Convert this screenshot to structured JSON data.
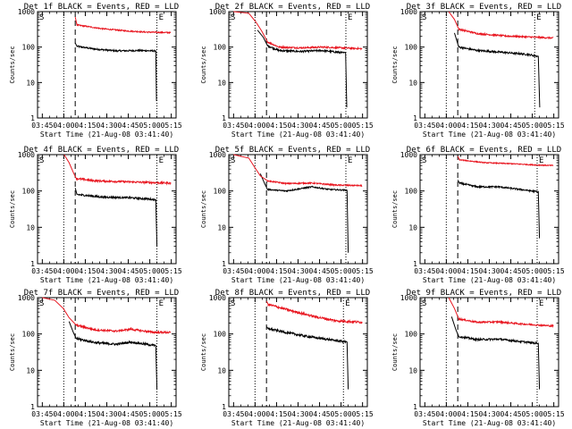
{
  "colors": {
    "events": "#000000",
    "lld": "#e8141e",
    "axes": "#000000",
    "background": "#ffffff"
  },
  "shared": {
    "ylabel": "Counts/sec",
    "xlabel": "Start Time (21-Aug-08 03:41:40)",
    "x_tick_labels": [
      "03:45",
      "04:00",
      "04:15",
      "04:30",
      "04:45",
      "05:00",
      "05:15"
    ],
    "y_tick_labels": [
      "1",
      "10",
      "100",
      "1000"
    ],
    "start_marker": "S",
    "end_marker": "E"
  },
  "chart_data": [
    {
      "type": "line",
      "title": "Det 1f BLACK = Events, RED = LLD",
      "xlim_min": [
        0,
        96.67
      ],
      "ylim": [
        1,
        1000
      ],
      "yscale": "log",
      "markers": {
        "start_dotted_min": 18.3,
        "dashed_min": 26.3,
        "end_dotted_min": 83.3
      },
      "series": [
        {
          "name": "Events",
          "color": "black",
          "data_start_min": 26.3,
          "data_end_min": 84.0,
          "pre": [
            [
              26.3,
              130
            ],
            [
              27.5,
              105
            ]
          ],
          "body": [
            [
              27.5,
              105
            ],
            [
              40,
              88
            ],
            [
              55,
              78
            ],
            [
              70,
              80
            ],
            [
              82,
              78
            ]
          ],
          "drop": [
            [
              82.5,
              78
            ],
            [
              83,
              3
            ]
          ],
          "noise": 0.05
        },
        {
          "name": "LLD",
          "color": "red",
          "data_start_min": 26.3,
          "data_end_min": 93.3,
          "pre": [
            [
              26.3,
              700
            ],
            [
              27.5,
              420
            ]
          ],
          "body": [
            [
              27.5,
              420
            ],
            [
              45,
              330
            ],
            [
              60,
              290
            ],
            [
              75,
              265
            ],
            [
              93,
              255
            ]
          ],
          "drop": null,
          "noise": 0.04
        }
      ]
    },
    {
      "type": "line",
      "title": "Det 2f BLACK = Events, RED = LLD",
      "xlim_min": [
        0,
        96.67
      ],
      "ylim": [
        1,
        1000
      ],
      "yscale": "log",
      "markers": {
        "start_dotted_min": 18.3,
        "dashed_min": 26.3,
        "end_dotted_min": 81.7
      },
      "series": [
        {
          "name": "Events",
          "color": "black",
          "data_start_min": 20.0,
          "data_end_min": 83.0,
          "pre": [
            [
              20,
              300
            ],
            [
              24,
              190
            ],
            [
              27,
              110
            ]
          ],
          "body": [
            [
              27,
              110
            ],
            [
              35,
              80
            ],
            [
              50,
              75
            ],
            [
              65,
              80
            ],
            [
              81,
              68
            ]
          ],
          "drop": [
            [
              81.5,
              68
            ],
            [
              82.3,
              2
            ]
          ],
          "noise": 0.06
        },
        {
          "name": "LLD",
          "color": "red",
          "data_start_min": 3.3,
          "data_end_min": 93.3,
          "pre": [
            [
              3.3,
              1000
            ],
            [
              14,
              900
            ],
            [
              19,
              500
            ],
            [
              23,
              280
            ],
            [
              27,
              140
            ]
          ],
          "body": [
            [
              27,
              140
            ],
            [
              35,
              100
            ],
            [
              50,
              95
            ],
            [
              65,
              100
            ],
            [
              93,
              90
            ]
          ],
          "drop": null,
          "noise": 0.05
        }
      ]
    },
    {
      "type": "line",
      "title": "Det 3f BLACK = Events, RED = LLD",
      "xlim_min": [
        0,
        96.67
      ],
      "ylim": [
        1,
        1000
      ],
      "yscale": "log",
      "markers": {
        "start_dotted_min": 18.3,
        "dashed_min": 26.3,
        "end_dotted_min": 80.0
      },
      "series": [
        {
          "name": "Events",
          "color": "black",
          "data_start_min": 24.0,
          "data_end_min": 84.0,
          "pre": [
            [
              24,
              250
            ],
            [
              27,
              100
            ]
          ],
          "body": [
            [
              27,
              100
            ],
            [
              40,
              80
            ],
            [
              60,
              70
            ],
            [
              75,
              62
            ],
            [
              82,
              55
            ]
          ],
          "drop": [
            [
              82.5,
              55
            ],
            [
              83.5,
              2
            ]
          ],
          "noise": 0.06
        },
        {
          "name": "LLD",
          "color": "red",
          "data_start_min": 20.0,
          "data_end_min": 93.3,
          "pre": [
            [
              20,
              1000
            ],
            [
              24,
              600
            ],
            [
              27,
              320
            ]
          ],
          "body": [
            [
              27,
              320
            ],
            [
              40,
              240
            ],
            [
              60,
              205
            ],
            [
              80,
              190
            ],
            [
              93,
              180
            ]
          ],
          "drop": null,
          "noise": 0.05
        }
      ]
    },
    {
      "type": "line",
      "title": "Det 4f BLACK = Events, RED = LLD",
      "xlim_min": [
        0,
        96.67
      ],
      "ylim": [
        1,
        1000
      ],
      "yscale": "log",
      "markers": {
        "start_dotted_min": 18.3,
        "dashed_min": 26.3,
        "end_dotted_min": 83.3
      },
      "series": [
        {
          "name": "Events",
          "color": "black",
          "data_start_min": 26.3,
          "data_end_min": 84.0,
          "pre": [
            [
              26.3,
              120
            ],
            [
              27.5,
              80
            ]
          ],
          "body": [
            [
              27.5,
              80
            ],
            [
              45,
              68
            ],
            [
              65,
              65
            ],
            [
              82,
              58
            ]
          ],
          "drop": [
            [
              82.5,
              58
            ],
            [
              83.3,
              3
            ]
          ],
          "noise": 0.06
        },
        {
          "name": "LLD",
          "color": "red",
          "data_start_min": 18.5,
          "data_end_min": 93.3,
          "pre": [
            [
              18.5,
              1000
            ],
            [
              22,
              600
            ],
            [
              25,
              320
            ],
            [
              27,
              220
            ]
          ],
          "body": [
            [
              27,
              220
            ],
            [
              40,
              190
            ],
            [
              60,
              180
            ],
            [
              80,
              170
            ],
            [
              93,
              165
            ]
          ],
          "drop": null,
          "noise": 0.06
        }
      ]
    },
    {
      "type": "line",
      "title": "Det 5f BLACK = Events, RED = LLD",
      "xlim_min": [
        0,
        96.67
      ],
      "ylim": [
        1,
        1000
      ],
      "yscale": "log",
      "markers": {
        "start_dotted_min": 18.3,
        "dashed_min": 26.3,
        "end_dotted_min": 81.7
      },
      "series": [
        {
          "name": "Events",
          "color": "black",
          "data_start_min": 22.0,
          "data_end_min": 84.0,
          "pre": [
            [
              22,
              300
            ],
            [
              25,
              160
            ],
            [
              27,
              110
            ]
          ],
          "body": [
            [
              27,
              110
            ],
            [
              40,
              100
            ],
            [
              58,
              130
            ],
            [
              70,
              110
            ],
            [
              82,
              105
            ]
          ],
          "drop": [
            [
              82.5,
              105
            ],
            [
              83.3,
              2
            ]
          ],
          "noise": 0.04
        },
        {
          "name": "LLD",
          "color": "red",
          "data_start_min": 3.3,
          "data_end_min": 93.3,
          "pre": [
            [
              3.3,
              1000
            ],
            [
              14,
              800
            ],
            [
              18,
              450
            ],
            [
              22,
              260
            ],
            [
              27,
              190
            ]
          ],
          "body": [
            [
              27,
              190
            ],
            [
              40,
              160
            ],
            [
              58,
              165
            ],
            [
              75,
              145
            ],
            [
              93,
              140
            ]
          ],
          "drop": null,
          "noise": 0.04
        }
      ]
    },
    {
      "type": "line",
      "title": "Det 6f BLACK = Events, RED = LLD",
      "xlim_min": [
        0,
        96.67
      ],
      "ylim": [
        1,
        1000
      ],
      "yscale": "log",
      "markers": {
        "start_dotted_min": 18.3,
        "dashed_min": 26.3,
        "end_dotted_min": 81.7
      },
      "series": [
        {
          "name": "Events",
          "color": "black",
          "data_start_min": 26.3,
          "data_end_min": 84.0,
          "pre": [
            [
              26.3,
              200
            ],
            [
              27.5,
              165
            ]
          ],
          "body": [
            [
              27.5,
              165
            ],
            [
              40,
              130
            ],
            [
              55,
              130
            ],
            [
              70,
              110
            ],
            [
              82,
              95
            ]
          ],
          "drop": [
            [
              82.5,
              95
            ],
            [
              83.3,
              5
            ]
          ],
          "noise": 0.05
        },
        {
          "name": "LLD",
          "color": "red",
          "data_start_min": 26.3,
          "data_end_min": 93.3,
          "pre": [
            [
              26.3,
              900
            ],
            [
              27.5,
              720
            ]
          ],
          "body": [
            [
              27.5,
              720
            ],
            [
              45,
              600
            ],
            [
              65,
              560
            ],
            [
              80,
              520
            ],
            [
              93,
              500
            ]
          ],
          "drop": null,
          "noise": 0.03
        }
      ]
    },
    {
      "type": "line",
      "title": "Det 7f BLACK = Events, RED = LLD",
      "xlim_min": [
        0,
        96.67
      ],
      "ylim": [
        1,
        1000
      ],
      "yscale": "log",
      "markers": {
        "start_dotted_min": 18.3,
        "dashed_min": 26.3,
        "end_dotted_min": 83.3
      },
      "series": [
        {
          "name": "Events",
          "color": "black",
          "data_start_min": 22.0,
          "data_end_min": 84.0,
          "pre": [
            [
              22,
              220
            ],
            [
              25,
              110
            ],
            [
              27,
              75
            ]
          ],
          "body": [
            [
              27,
              75
            ],
            [
              40,
              58
            ],
            [
              55,
              52
            ],
            [
              65,
              60
            ],
            [
              82,
              48
            ]
          ],
          "drop": [
            [
              82.5,
              48
            ],
            [
              83.3,
              3
            ]
          ],
          "noise": 0.07
        },
        {
          "name": "LLD",
          "color": "red",
          "data_start_min": 3.3,
          "data_end_min": 93.3,
          "pre": [
            [
              3.3,
              1000
            ],
            [
              12,
              850
            ],
            [
              18,
              500
            ],
            [
              22,
              280
            ],
            [
              27,
              175
            ]
          ],
          "body": [
            [
              27,
              175
            ],
            [
              40,
              130
            ],
            [
              55,
              120
            ],
            [
              65,
              135
            ],
            [
              80,
              112
            ],
            [
              93,
              110
            ]
          ],
          "drop": null,
          "noise": 0.06
        }
      ]
    },
    {
      "type": "line",
      "title": "Det 8f BLACK = Events, RED = LLD",
      "xlim_min": [
        0,
        96.67
      ],
      "ylim": [
        1,
        1000
      ],
      "yscale": "log",
      "markers": {
        "start_dotted_min": 18.3,
        "dashed_min": 26.3,
        "end_dotted_min": 80.0
      },
      "series": [
        {
          "name": "Events",
          "color": "black",
          "data_start_min": 26.3,
          "data_end_min": 84.0,
          "pre": [
            [
              26.3,
              160
            ],
            [
              27.5,
              140
            ]
          ],
          "body": [
            [
              27.5,
              140
            ],
            [
              40,
              110
            ],
            [
              55,
              85
            ],
            [
              70,
              70
            ],
            [
              82,
              60
            ]
          ],
          "drop": [
            [
              82.5,
              60
            ],
            [
              83.3,
              3
            ]
          ],
          "noise": 0.07
        },
        {
          "name": "LLD",
          "color": "red",
          "data_start_min": 26.3,
          "data_end_min": 93.3,
          "pre": [
            [
              26.3,
              800
            ],
            [
              27.5,
              650
            ]
          ],
          "body": [
            [
              27.5,
              650
            ],
            [
              45,
              420
            ],
            [
              60,
              300
            ],
            [
              75,
              230
            ],
            [
              93,
              210
            ]
          ],
          "drop": null,
          "noise": 0.07
        }
      ]
    },
    {
      "type": "line",
      "title": "Det 9f BLACK = Events, RED = LLD",
      "xlim_min": [
        0,
        96.67
      ],
      "ylim": [
        1,
        1000
      ],
      "yscale": "log",
      "markers": {
        "start_dotted_min": 18.3,
        "dashed_min": 26.3,
        "end_dotted_min": 81.7
      },
      "series": [
        {
          "name": "Events",
          "color": "black",
          "data_start_min": 22.0,
          "data_end_min": 84.0,
          "pre": [
            [
              22,
              300
            ],
            [
              25,
              130
            ],
            [
              27,
              85
            ]
          ],
          "body": [
            [
              27,
              85
            ],
            [
              40,
              70
            ],
            [
              55,
              72
            ],
            [
              70,
              62
            ],
            [
              82,
              55
            ]
          ],
          "drop": [
            [
              82.5,
              55
            ],
            [
              83.3,
              3
            ]
          ],
          "noise": 0.06
        },
        {
          "name": "LLD",
          "color": "red",
          "data_start_min": 20.0,
          "data_end_min": 93.3,
          "pre": [
            [
              20,
              1000
            ],
            [
              24,
              500
            ],
            [
              27,
              260
            ]
          ],
          "body": [
            [
              27,
              260
            ],
            [
              40,
              210
            ],
            [
              55,
              215
            ],
            [
              70,
              190
            ],
            [
              93,
              165
            ]
          ],
          "drop": null,
          "noise": 0.05
        }
      ]
    }
  ]
}
